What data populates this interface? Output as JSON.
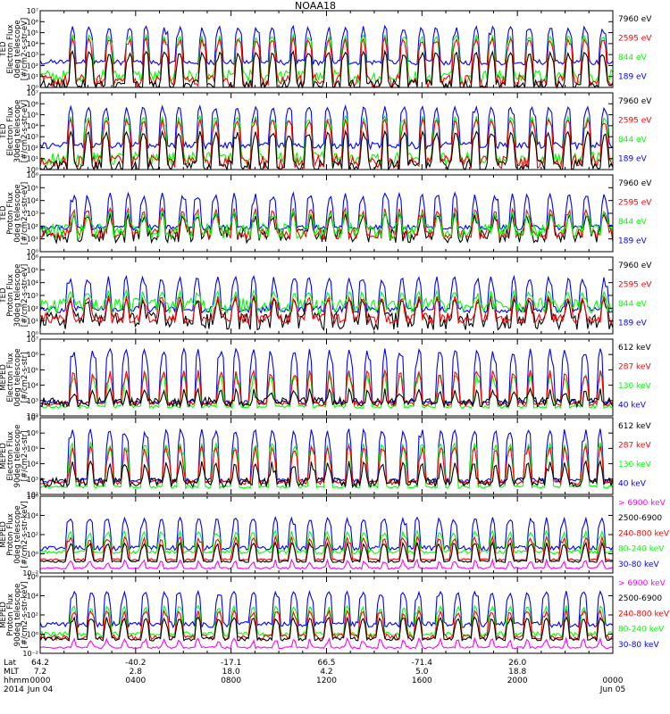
{
  "title": "NOAA18",
  "x_axis": {
    "row_labels": [
      "Lat",
      "MLT",
      "hhmm",
      "2014"
    ],
    "ticks": [
      {
        "lat": "64.2",
        "mlt": "7.2",
        "time": "0000",
        "date": "Jun 04"
      },
      {
        "lat": "-40.2",
        "mlt": "2.8",
        "time": "0400",
        "date": ""
      },
      {
        "lat": "-17.1",
        "mlt": "18.0",
        "time": "0800",
        "date": ""
      },
      {
        "lat": "66.5",
        "mlt": "4.2",
        "time": "1200",
        "date": ""
      },
      {
        "lat": "-71.4",
        "mlt": "5.0",
        "time": "1600",
        "date": ""
      },
      {
        "lat": "26.0",
        "mlt": "18.8",
        "time": "2000",
        "date": ""
      },
      {
        "lat": "",
        "mlt": "",
        "time": "0000",
        "date": "Jun 05"
      }
    ]
  },
  "colors": {
    "blue": "#0000ff",
    "red": "#ff0000",
    "green": "#00ff00",
    "black": "#000000",
    "magenta": "#ff00ff"
  },
  "chart_data": [
    {
      "type": "line",
      "ylabel": [
        "TED",
        "Electron Flux",
        "0deg telescope",
        "[#/cm2-s-str-eV]"
      ],
      "yscale": "log",
      "ylim": [
        1,
        10000000
      ],
      "ytick_labels": [
        "10⁰",
        "10¹",
        "10²",
        "10³",
        "10⁴",
        "10⁵",
        "10⁶",
        "10⁷"
      ],
      "legend": [
        {
          "label": "7960 eV",
          "color": "#000000"
        },
        {
          "label": "2595 eV",
          "color": "#ff0000"
        },
        {
          "label": "844 eV",
          "color": "#00ff00"
        },
        {
          "label": "189 eV",
          "color": "#0000ff"
        }
      ],
      "series": [
        {
          "name": "189 eV",
          "color": "#0000ff",
          "baseline_log": 2.3,
          "spread": 0.25,
          "peak_log": 5.6
        },
        {
          "name": "844 eV",
          "color": "#00ff00",
          "baseline_log": 1.0,
          "spread": 0.6,
          "peak_log": 4.8
        },
        {
          "name": "2595 eV",
          "color": "#ff0000",
          "baseline_log": 0.6,
          "spread": 0.6,
          "peak_log": 4.5
        },
        {
          "name": "7960 eV",
          "color": "#000000",
          "baseline_log": 0.2,
          "spread": 0.5,
          "peak_log": 3.3
        }
      ]
    },
    {
      "type": "line",
      "ylabel": [
        "TED",
        "Electron Flux",
        "30deg telescope",
        "[#/cm2-s-str-eV]"
      ],
      "yscale": "log",
      "ylim": [
        1,
        10000000
      ],
      "ytick_labels": [
        "10⁰",
        "10¹",
        "10²",
        "10³",
        "10⁴",
        "10⁵",
        "10⁶",
        "10⁷"
      ],
      "legend": [
        {
          "label": "7960 eV",
          "color": "#000000"
        },
        {
          "label": "2595 eV",
          "color": "#ff0000"
        },
        {
          "label": "844 eV",
          "color": "#00ff00"
        },
        {
          "label": "189 eV",
          "color": "#0000ff"
        }
      ],
      "series": [
        {
          "name": "189 eV",
          "color": "#0000ff",
          "baseline_log": 2.2,
          "spread": 0.3,
          "peak_log": 5.8
        },
        {
          "name": "844 eV",
          "color": "#00ff00",
          "baseline_log": 1.0,
          "spread": 0.6,
          "peak_log": 4.9
        },
        {
          "name": "2595 eV",
          "color": "#ff0000",
          "baseline_log": 0.7,
          "spread": 0.6,
          "peak_log": 4.6
        },
        {
          "name": "7960 eV",
          "color": "#000000",
          "baseline_log": 0.3,
          "spread": 0.6,
          "peak_log": 3.5
        }
      ]
    },
    {
      "type": "line",
      "ylabel": [
        "TED",
        "Proton Flux",
        "0deg telescope",
        "[#/cm2-s-str-eV]"
      ],
      "yscale": "log",
      "ylim": [
        1,
        1000000
      ],
      "ytick_labels": [
        "10⁰",
        "10¹",
        "10²",
        "10³",
        "10⁴",
        "10⁵",
        "10⁶"
      ],
      "legend": [
        {
          "label": "7960 eV",
          "color": "#000000"
        },
        {
          "label": "2595 eV",
          "color": "#ff0000"
        },
        {
          "label": "844 eV",
          "color": "#00ff00"
        },
        {
          "label": "189 eV",
          "color": "#0000ff"
        }
      ],
      "series": [
        {
          "name": "189 eV",
          "color": "#0000ff",
          "baseline_log": 1.9,
          "spread": 0.2,
          "peak_log": 4.6
        },
        {
          "name": "7960 eV",
          "color": "#000000",
          "baseline_log": 1.3,
          "spread": 0.6,
          "peak_log": 3.0
        },
        {
          "name": "2595 eV",
          "color": "#ff0000",
          "baseline_log": 1.4,
          "spread": 0.4,
          "peak_log": 3.4
        },
        {
          "name": "844 eV",
          "color": "#00ff00",
          "baseline_log": 1.6,
          "spread": 0.6,
          "peak_log": 3.2
        }
      ]
    },
    {
      "type": "line",
      "ylabel": [
        "TED",
        "Proton Flux",
        "30deg telescope",
        "[#/cm2-s-str-eV]"
      ],
      "yscale": "log",
      "ylim": [
        1,
        1000000
      ],
      "ytick_labels": [
        "10⁰",
        "10¹",
        "10²",
        "10³",
        "10⁴",
        "10⁵",
        "10⁶"
      ],
      "legend": [
        {
          "label": "7960 eV",
          "color": "#000000"
        },
        {
          "label": "2595 eV",
          "color": "#ff0000"
        },
        {
          "label": "844 eV",
          "color": "#00ff00"
        },
        {
          "label": "189 eV",
          "color": "#0000ff"
        }
      ],
      "series": [
        {
          "name": "189 eV",
          "color": "#0000ff",
          "baseline_log": 1.9,
          "spread": 0.25,
          "peak_log": 4.5
        },
        {
          "name": "7960 eV",
          "color": "#000000",
          "baseline_log": 1.0,
          "spread": 0.7,
          "peak_log": 2.8
        },
        {
          "name": "2595 eV",
          "color": "#ff0000",
          "baseline_log": 1.2,
          "spread": 0.4,
          "peak_log": 3.0
        },
        {
          "name": "844 eV",
          "color": "#00ff00",
          "baseline_log": 2.2,
          "spread": 0.6,
          "peak_log": 3.4
        }
      ]
    },
    {
      "type": "line",
      "ylabel": [
        "MEPED",
        "Electron Flux",
        "0deg telescope",
        "[#/cm2-s-str]"
      ],
      "yscale": "log",
      "ylim": [
        100,
        10000000
      ],
      "ytick_labels": [
        "10²",
        "10³",
        "10⁴",
        "10⁵",
        "10⁶",
        "10⁷"
      ],
      "legend": [
        {
          "label": "612 keV",
          "color": "#000000"
        },
        {
          "label": "287 keV",
          "color": "#ff0000"
        },
        {
          "label": "130 keV",
          "color": "#00ff00"
        },
        {
          "label": "40 keV",
          "color": "#0000ff"
        }
      ],
      "series": [
        {
          "name": "40 keV",
          "color": "#0000ff",
          "baseline_log": 2.9,
          "spread": 0.15,
          "peak_log": 6.4
        },
        {
          "name": "130 keV",
          "color": "#00ff00",
          "baseline_log": 2.6,
          "spread": 0.1,
          "peak_log": 4.8
        },
        {
          "name": "287 keV",
          "color": "#ff0000",
          "baseline_log": 2.8,
          "spread": 0.15,
          "peak_log": 5.0
        },
        {
          "name": "612 keV",
          "color": "#000000",
          "baseline_log": 2.9,
          "spread": 0.3,
          "peak_log": 3.8
        }
      ]
    },
    {
      "type": "line",
      "ylabel": [
        "MEPED",
        "Electron Flux",
        "90deg telescope",
        "[#/cm2-s-str]"
      ],
      "yscale": "log",
      "ylim": [
        100,
        10000000
      ],
      "ytick_labels": [
        "10²",
        "10³",
        "10⁴",
        "10⁵",
        "10⁶",
        "10⁷"
      ],
      "legend": [
        {
          "label": "612 keV",
          "color": "#000000"
        },
        {
          "label": "287 keV",
          "color": "#ff0000"
        },
        {
          "label": "130 keV",
          "color": "#00ff00"
        },
        {
          "label": "40 keV",
          "color": "#0000ff"
        }
      ],
      "series": [
        {
          "name": "40 keV",
          "color": "#0000ff",
          "baseline_log": 2.9,
          "spread": 0.15,
          "peak_log": 6.3
        },
        {
          "name": "130 keV",
          "color": "#00ff00",
          "baseline_log": 2.5,
          "spread": 0.1,
          "peak_log": 5.4
        },
        {
          "name": "287 keV",
          "color": "#ff0000",
          "baseline_log": 2.8,
          "spread": 0.15,
          "peak_log": 5.2
        },
        {
          "name": "612 keV",
          "color": "#000000",
          "baseline_log": 2.8,
          "spread": 0.3,
          "peak_log": 4.2
        }
      ]
    },
    {
      "type": "line",
      "ylabel": [
        "MEPED",
        "Proton Flux",
        "0deg telescope",
        "[#/cm2-s-str-keV]"
      ],
      "yscale": "log",
      "ylim": [
        0.01,
        1000000
      ],
      "ytick_labels": [
        "10⁻²",
        "10⁰",
        "10²",
        "10⁴",
        "10⁶"
      ],
      "legend": [
        {
          "label": "> 6900 keV",
          "color": "#ff00ff"
        },
        {
          "label": "2500-6900",
          "color": "#000000"
        },
        {
          "label": "240-800 keV",
          "color": "#ff0000"
        },
        {
          "label": "80-240 keV",
          "color": "#00ff00"
        },
        {
          "label": "30-80 keV",
          "color": "#0000ff"
        }
      ],
      "series": [
        {
          "name": "30-80 keV",
          "color": "#0000ff",
          "baseline_log": 0.6,
          "spread": 0.25,
          "peak_log": 3.8
        },
        {
          "name": "80-240 keV",
          "color": "#00ff00",
          "baseline_log": 0.2,
          "spread": 0.2,
          "peak_log": 2.4
        },
        {
          "name": "240-800 keV",
          "color": "#ff0000",
          "baseline_log": -0.6,
          "spread": 0.1,
          "peak_log": 1.8
        },
        {
          "name": "2500-6900",
          "color": "#000000",
          "baseline_log": -0.8,
          "spread": 0.1,
          "peak_log": 1.2
        },
        {
          "name": "> 6900 keV",
          "color": "#ff00ff",
          "baseline_log": -1.5,
          "spread": 0.1,
          "peak_log": -0.6
        }
      ]
    },
    {
      "type": "line",
      "ylabel": [
        "MEPED",
        "Proton Flux",
        "90deg telescope",
        "[#/cm2-s-str-keV]"
      ],
      "yscale": "log",
      "ylim": [
        0.01,
        1000000
      ],
      "ytick_labels": [
        "10⁻²",
        "10⁰",
        "10²",
        "10⁴",
        "10⁶"
      ],
      "legend": [
        {
          "label": "> 6900 keV",
          "color": "#ff00ff"
        },
        {
          "label": "2500-6900",
          "color": "#000000"
        },
        {
          "label": "240-800 keV",
          "color": "#ff0000"
        },
        {
          "label": "80-240 keV",
          "color": "#00ff00"
        },
        {
          "label": "30-80 keV",
          "color": "#0000ff"
        }
      ],
      "series": [
        {
          "name": "30-80 keV",
          "color": "#0000ff",
          "baseline_log": 1.0,
          "spread": 0.3,
          "peak_log": 4.5
        },
        {
          "name": "80-240 keV",
          "color": "#00ff00",
          "baseline_log": 0.0,
          "spread": 0.25,
          "peak_log": 3.0
        },
        {
          "name": "240-800 keV",
          "color": "#ff0000",
          "baseline_log": -0.3,
          "spread": 0.3,
          "peak_log": 2.5
        },
        {
          "name": "2500-6900",
          "color": "#000000",
          "baseline_log": -0.5,
          "spread": 0.2,
          "peak_log": 1.8
        },
        {
          "name": "> 6900 keV",
          "color": "#ff00ff",
          "baseline_log": -1.4,
          "spread": 0.1,
          "peak_log": -0.4
        }
      ]
    }
  ]
}
